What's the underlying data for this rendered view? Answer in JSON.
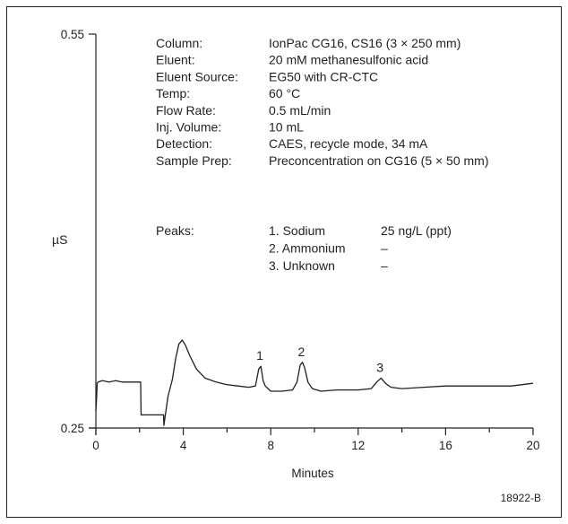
{
  "chart_data": {
    "type": "line",
    "xlabel": "Minutes",
    "ylabel": "µS",
    "x_ticks": [
      "0",
      "4",
      "8",
      "12",
      "16",
      "20"
    ],
    "y_ticks": [
      "0.55",
      "0.25"
    ],
    "xlim": [
      0,
      20
    ],
    "ylim": [
      0.25,
      0.55
    ],
    "grid": false,
    "series": [
      {
        "x": [
          0,
          0.03,
          0.06,
          0.1,
          0.3,
          0.6,
          0.9,
          1.2,
          1.5,
          1.8,
          2.05,
          2.06,
          2.07,
          3.1,
          3.11,
          3.3,
          3.5,
          3.65,
          3.8,
          3.95,
          4.1,
          4.3,
          4.6,
          5.0,
          5.5,
          6.0,
          6.5,
          7.0,
          7.3,
          7.45,
          7.55,
          7.65,
          7.75,
          8.0,
          8.5,
          9.0,
          9.2,
          9.35,
          9.45,
          9.55,
          9.7,
          9.9,
          10.3,
          11.0,
          12.0,
          12.6,
          12.85,
          13.05,
          13.25,
          13.5,
          14.0,
          15.0,
          16.0,
          17.0,
          18.0,
          19.0,
          19.5,
          20.0
        ],
        "y": [
          0.263,
          0.271,
          0.284,
          0.285,
          0.286,
          0.285,
          0.286,
          0.285,
          0.285,
          0.285,
          0.285,
          0.27,
          0.26,
          0.26,
          0.252,
          0.274,
          0.287,
          0.303,
          0.314,
          0.317,
          0.313,
          0.305,
          0.295,
          0.288,
          0.285,
          0.283,
          0.282,
          0.281,
          0.282,
          0.295,
          0.297,
          0.286,
          0.282,
          0.278,
          0.278,
          0.279,
          0.285,
          0.298,
          0.3,
          0.296,
          0.285,
          0.28,
          0.278,
          0.279,
          0.279,
          0.28,
          0.285,
          0.288,
          0.284,
          0.281,
          0.28,
          0.281,
          0.282,
          0.282,
          0.282,
          0.282,
          0.283,
          0.284
        ]
      }
    ],
    "peak_labels": [
      {
        "label": "1",
        "x": 7.5,
        "y": 0.297
      },
      {
        "label": "2",
        "x": 9.4,
        "y": 0.3
      },
      {
        "label": "3",
        "x": 13.0,
        "y": 0.288
      }
    ]
  },
  "conditions": [
    {
      "label": "Column:",
      "value": "IonPac CG16, CS16 (3 × 250 mm)"
    },
    {
      "label": "Eluent:",
      "value": "20 mM methanesulfonic acid"
    },
    {
      "label": "Eluent Source:",
      "value": "EG50 with CR-CTC"
    },
    {
      "label": "Temp:",
      "value": "60 °C"
    },
    {
      "label": "Flow Rate:",
      "value": "0.5 mL/min"
    },
    {
      "label": "Inj. Volume:",
      "value": "10 mL"
    },
    {
      "label": "Detection:",
      "value": "CAES, recycle mode, 34 mA"
    },
    {
      "label": "Sample Prep:",
      "value": "Preconcentration on CG16 (5 × 50 mm)"
    }
  ],
  "peaks_label": "Peaks:",
  "peaks": [
    {
      "name": "1. Sodium",
      "amount": "25 ng/L (ppt)"
    },
    {
      "name": "2. Ammonium",
      "amount": "–"
    },
    {
      "name": "3. Unknown",
      "amount": "–"
    }
  ],
  "figure_id": "18922-B"
}
